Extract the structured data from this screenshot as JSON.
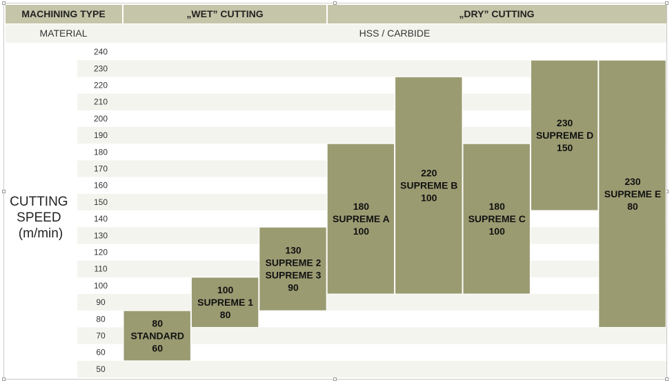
{
  "chart_data": {
    "type": "bar",
    "header": {
      "machining_type_label": "MACHINING TYPE",
      "wet_label": "„WET” CUTTING",
      "dry_label": "„DRY” CUTTING",
      "material_label": "MATERIAL",
      "material_value": "HSS / CARBIDE"
    },
    "ylabel_lines": [
      "CUTTING",
      "SPEED",
      "(m/min)"
    ],
    "yticks": [
      240,
      230,
      220,
      210,
      200,
      190,
      180,
      170,
      160,
      150,
      140,
      130,
      120,
      110,
      100,
      90,
      80,
      70,
      60,
      50
    ],
    "ylim": [
      50,
      240
    ],
    "categories": [
      "STANDARD",
      "SUPREME 1",
      "SUPREME 2 / SUPREME 3",
      "SUPREME A",
      "SUPREME B",
      "SUPREME C",
      "SUPREME D",
      "SUPREME E"
    ],
    "groups": [
      {
        "name": "wet",
        "columns": [
          0,
          1,
          2
        ]
      },
      {
        "name": "dry",
        "columns": [
          3,
          4,
          5,
          6,
          7
        ]
      }
    ],
    "bars": [
      {
        "column": 0,
        "max": 80,
        "min": 60,
        "lines": [
          "80",
          "STANDARD",
          "60"
        ]
      },
      {
        "column": 1,
        "max": 100,
        "min": 80,
        "lines": [
          "100",
          "SUPREME 1",
          "80"
        ]
      },
      {
        "column": 2,
        "max": 130,
        "min": 90,
        "lines": [
          "130",
          "SUPREME 2",
          "SUPREME 3",
          "90"
        ]
      },
      {
        "column": 3,
        "max": 180,
        "min": 100,
        "lines": [
          "180",
          "SUPREME A",
          "100"
        ]
      },
      {
        "column": 4,
        "max": 220,
        "min": 100,
        "lines": [
          "220",
          "SUPREME B",
          "100"
        ]
      },
      {
        "column": 5,
        "max": 180,
        "min": 100,
        "lines": [
          "180",
          "SUPREME C",
          "100"
        ]
      },
      {
        "column": 6,
        "max": 230,
        "min": 150,
        "lines": [
          "230",
          "SUPREME D",
          "150"
        ]
      },
      {
        "column": 7,
        "max": 230,
        "min": 80,
        "lines": [
          "230",
          "SUPREME E",
          "80"
        ]
      }
    ],
    "colors": {
      "bar": "#9b9b72",
      "header_bg": "#c5c5a9",
      "band": "#f4f4ef",
      "bar_border": "#ffffff"
    }
  }
}
